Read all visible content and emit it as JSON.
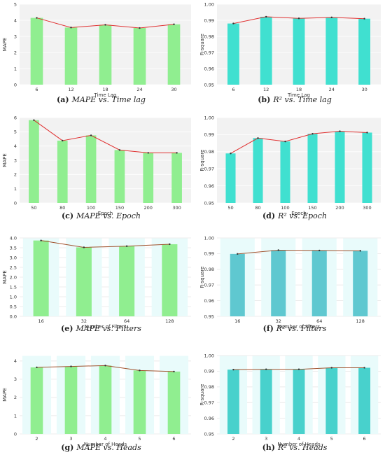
{
  "panels": [
    {
      "id": "a",
      "type": "bar",
      "caption_letter": "(a)",
      "caption_text": "MAPE vs. Time lag",
      "xlabel": "Time Lag",
      "ylabel": "MAPE",
      "categories": [
        "6",
        "12",
        "18",
        "24",
        "30"
      ],
      "values": [
        4.15,
        3.55,
        3.72,
        3.52,
        3.75
      ],
      "ylim": [
        0,
        5
      ],
      "yticks": [
        0,
        1,
        2,
        3,
        4,
        5
      ],
      "bar_color": "#90ee90",
      "line_color": "#e03030",
      "style": "plain"
    },
    {
      "id": "b",
      "type": "bar",
      "caption_letter": "(b)",
      "caption_text": "R² vs. Time lag",
      "xlabel": "Time Lag",
      "ylabel": "R-square",
      "categories": [
        "6",
        "12",
        "18",
        "24",
        "30"
      ],
      "values": [
        0.988,
        0.9922,
        0.9912,
        0.9918,
        0.991
      ],
      "ylim": [
        0.95,
        1.0
      ],
      "yticks": [
        0.95,
        0.96,
        0.97,
        0.98,
        0.99,
        1.0
      ],
      "bar_color": "#40e0d0",
      "line_color": "#e03030",
      "style": "plain"
    },
    {
      "id": "c",
      "type": "bar",
      "caption_letter": "(c)",
      "caption_text": "MAPE vs. Epoch",
      "xlabel": "Epoch",
      "ylabel": "MAPE",
      "categories": [
        "50",
        "80",
        "100",
        "150",
        "200",
        "300"
      ],
      "values": [
        5.82,
        4.38,
        4.75,
        3.72,
        3.52,
        3.52
      ],
      "ylim": [
        0,
        6
      ],
      "yticks": [
        0,
        1,
        2,
        3,
        4,
        5,
        6
      ],
      "bar_color": "#90ee90",
      "line_color": "#e03030",
      "style": "plain"
    },
    {
      "id": "d",
      "type": "bar",
      "caption_letter": "(d)",
      "caption_text": "R² vs. Epoch",
      "xlabel": "Epoch",
      "ylabel": "R-square",
      "categories": [
        "50",
        "80",
        "100",
        "150",
        "200",
        "300"
      ],
      "values": [
        0.979,
        0.988,
        0.986,
        0.9905,
        0.992,
        0.9912
      ],
      "ylim": [
        0.95,
        1.0
      ],
      "yticks": [
        0.95,
        0.96,
        0.97,
        0.98,
        0.99,
        1.0
      ],
      "bar_color": "#40e0d0",
      "line_color": "#e03030",
      "style": "plain"
    },
    {
      "id": "e",
      "type": "bar",
      "caption_letter": "(e)",
      "caption_text": "MAPE vs. Filters",
      "xlabel": "Number of Filters",
      "ylabel": "MAPE",
      "categories": [
        "16",
        "32",
        "64",
        "128"
      ],
      "values": [
        3.87,
        3.52,
        3.58,
        3.68
      ],
      "ylim": [
        0,
        4.0
      ],
      "yticks": [
        0,
        0.5,
        1.0,
        1.5,
        2.0,
        2.5,
        3.0,
        3.5,
        4.0
      ],
      "bar_color": "#90ee90",
      "line_color": "#a0522d",
      "style": "halo"
    },
    {
      "id": "f",
      "type": "bar",
      "caption_letter": "(f)",
      "caption_text": "R² vs. Filters",
      "xlabel": "Number of Filters",
      "ylabel": "R-square",
      "categories": [
        "16",
        "32",
        "64",
        "128"
      ],
      "values": [
        0.9898,
        0.9922,
        0.992,
        0.9918
      ],
      "ylim": [
        0.95,
        1.0
      ],
      "yticks": [
        0.95,
        0.96,
        0.97,
        0.98,
        0.99,
        1.0
      ],
      "bar_color": "#5fc8d0",
      "line_color": "#a0522d",
      "style": "halo"
    },
    {
      "id": "g",
      "type": "bar",
      "caption_letter": "(g)",
      "caption_text": "MAPE vs. Heads",
      "xlabel": "Number of Heads",
      "ylabel": "MAPE",
      "categories": [
        "2",
        "3",
        "4",
        "5",
        "6"
      ],
      "values": [
        3.65,
        3.7,
        3.75,
        3.48,
        3.42
      ],
      "ylim": [
        0,
        4.3
      ],
      "yticks": [
        0,
        1,
        2,
        3,
        4
      ],
      "bar_color": "#90ee90",
      "line_color": "#a0522d",
      "style": "halo"
    },
    {
      "id": "h",
      "type": "bar",
      "caption_letter": "(h)",
      "caption_text": "R² vs. Heads",
      "xlabel": "Number of Heads",
      "ylabel": "R-square",
      "categories": [
        "2",
        "3",
        "4",
        "5",
        "6"
      ],
      "values": [
        0.991,
        0.9912,
        0.9912,
        0.9922,
        0.9922
      ],
      "ylim": [
        0.95,
        1.0
      ],
      "yticks": [
        0.95,
        0.96,
        0.97,
        0.98,
        0.99,
        1.0
      ],
      "bar_color": "#48d1cc",
      "line_color": "#a0522d",
      "style": "halo"
    }
  ]
}
